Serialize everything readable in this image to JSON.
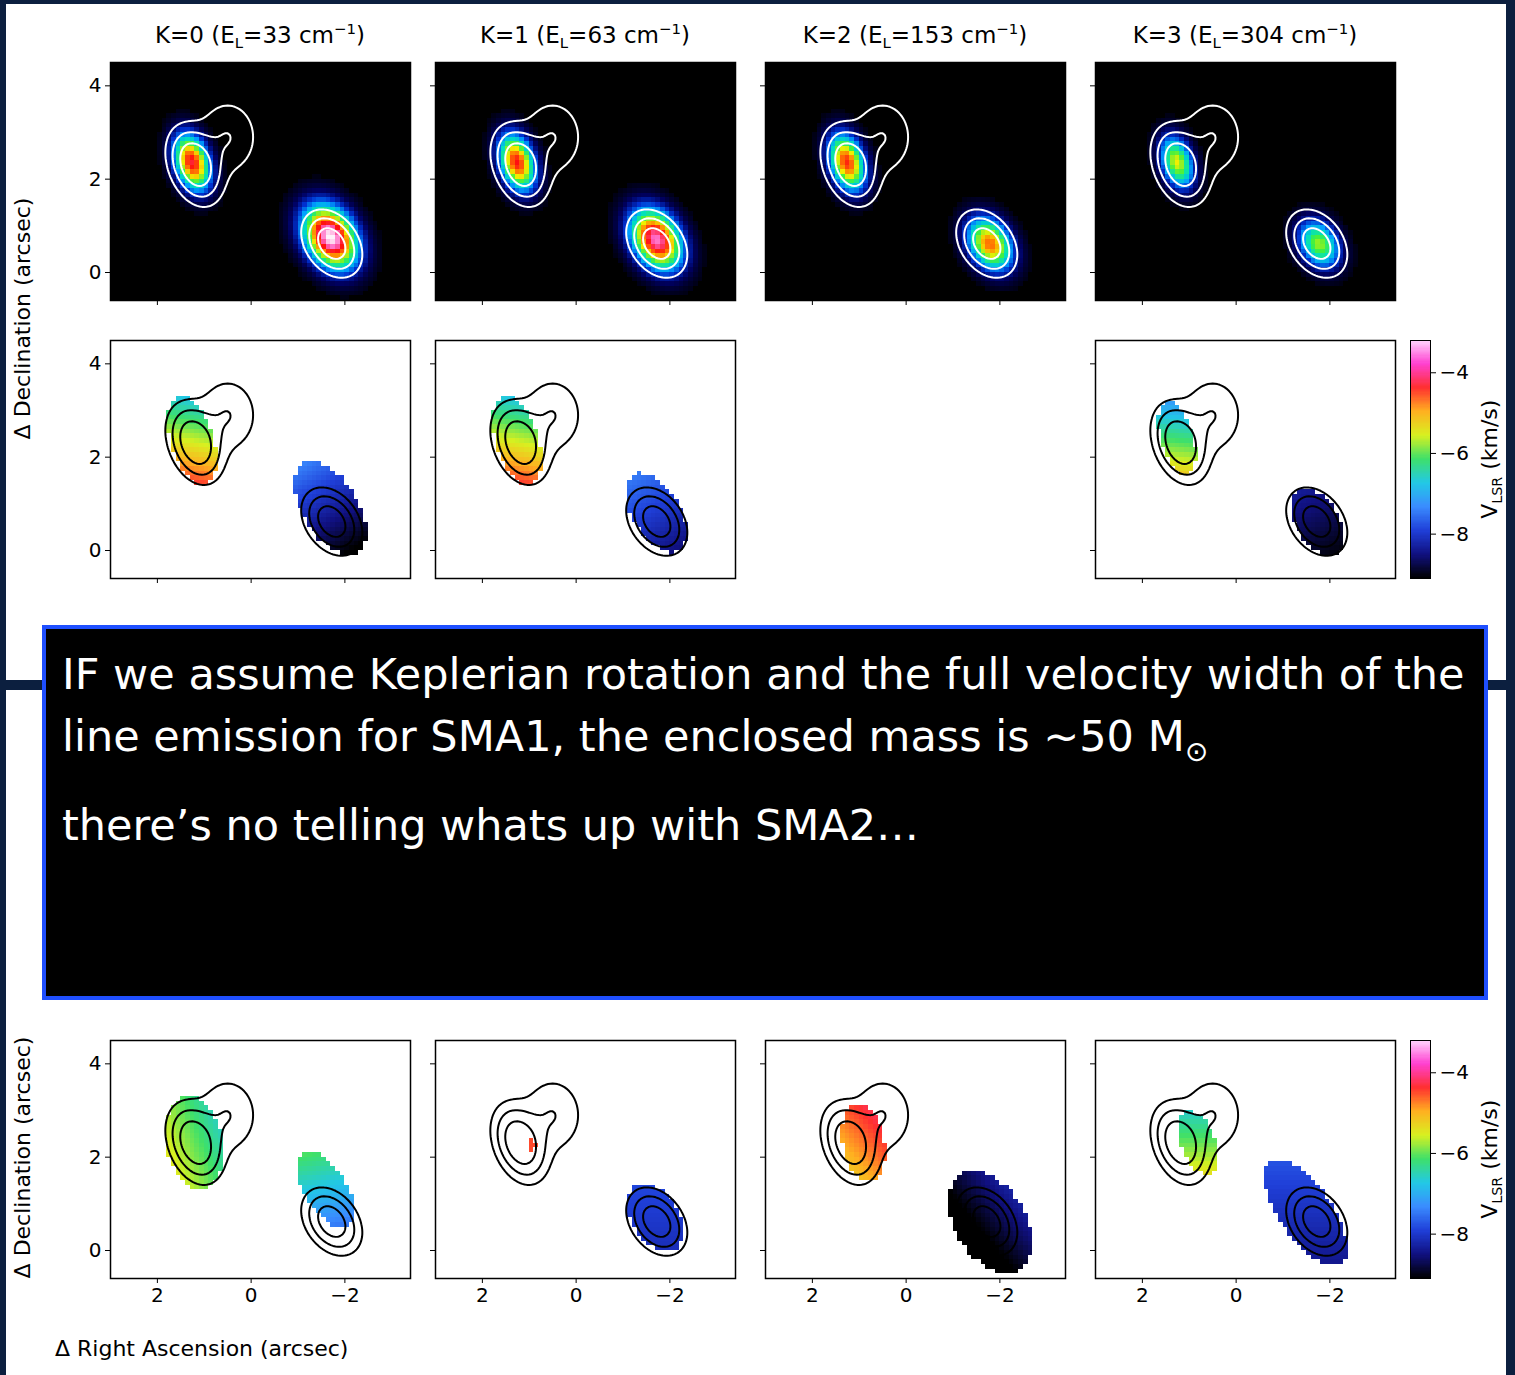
{
  "chart_data": {
    "type": "heatmap",
    "xlabel": "Δ Right Ascension (arcsec)",
    "ylabel": "Δ Declination (arcsec)",
    "xlim": [
      3,
      -3.4
    ],
    "ylim": [
      -0.6,
      4.5
    ],
    "xticks": [
      2,
      0,
      -2
    ],
    "yticks": [
      0,
      2,
      4
    ],
    "panel_titles": [
      {
        "text": "K=0 (E",
        "sub": "L",
        "mid": "=33 cm",
        "sup": "−1",
        "end": ")"
      },
      {
        "text": "K=1 (E",
        "sub": "L",
        "mid": "=63 cm",
        "sup": "−1",
        "end": ")"
      },
      {
        "text": "K=2 (E",
        "sub": "L",
        "mid": "=153 cm",
        "sup": "−1",
        "end": ")"
      },
      {
        "text": "K=3 (E",
        "sub": "L",
        "mid": "=304 cm",
        "sup": "−1",
        "end": ")"
      }
    ],
    "continuum_contours": {
      "levels": [
        0.12,
        0.3,
        0.6
      ],
      "components": [
        {
          "x": 1.2,
          "y": 2.3,
          "sigma_major": 0.45,
          "sigma_minor": 0.28,
          "pa": 20,
          "amplitude": 1.0
        },
        {
          "x": 0.5,
          "y": 2.9,
          "sigma_major": 0.5,
          "sigma_minor": 0.4,
          "pa": 0,
          "amplitude": 0.3
        },
        {
          "x": -1.72,
          "y": 0.62,
          "sigma_major": 0.4,
          "sigma_minor": 0.28,
          "pa": 35,
          "amplitude": 0.9
        }
      ]
    },
    "intensity_range": [
      0,
      1
    ],
    "intensity_panels": [
      {
        "blobs": [
          {
            "x": 1.25,
            "y": 2.35,
            "sigma_major": 0.43,
            "sigma_minor": 0.25,
            "pa": 17,
            "peak": 0.82
          },
          {
            "x": -1.7,
            "y": 0.75,
            "sigma_major": 0.5,
            "sigma_minor": 0.36,
            "pa": 31,
            "peak": 1.0
          }
        ]
      },
      {
        "blobs": [
          {
            "x": 1.25,
            "y": 2.35,
            "sigma_major": 0.43,
            "sigma_minor": 0.25,
            "pa": 17,
            "peak": 0.8
          },
          {
            "x": -1.72,
            "y": 0.7,
            "sigma_major": 0.48,
            "sigma_minor": 0.34,
            "pa": 31,
            "peak": 0.92
          }
        ]
      },
      {
        "blobs": [
          {
            "x": 1.25,
            "y": 2.35,
            "sigma_major": 0.43,
            "sigma_minor": 0.25,
            "pa": 17,
            "peak": 0.78
          },
          {
            "x": -1.8,
            "y": 0.6,
            "sigma_major": 0.42,
            "sigma_minor": 0.3,
            "pa": 31,
            "peak": 0.72
          }
        ]
      },
      {
        "blobs": [
          {
            "x": 1.25,
            "y": 2.35,
            "sigma_major": 0.4,
            "sigma_minor": 0.23,
            "pa": 17,
            "peak": 0.6
          },
          {
            "x": -1.78,
            "y": 0.6,
            "sigma_major": 0.38,
            "sigma_minor": 0.28,
            "pa": 31,
            "peak": 0.55
          }
        ]
      }
    ],
    "velocity_rows": [
      [
        {
          "regions": [
            {
              "x": 1.25,
              "y": 2.35,
              "semi_major": 1.0,
              "semi_minor": 0.45,
              "pa": 17,
              "v0": -5.6,
              "dv_dx": 0.3,
              "dv_dy": -1.3
            },
            {
              "x": -1.7,
              "y": 0.9,
              "semi_major": 1.1,
              "semi_minor": 0.6,
              "pa": 31,
              "v0": -8.3,
              "dv_dx": 0.4,
              "dv_dy": 0.7
            }
          ]
        },
        {
          "regions": [
            {
              "x": 1.25,
              "y": 2.35,
              "semi_major": 1.0,
              "semi_minor": 0.45,
              "pa": 17,
              "v0": -5.6,
              "dv_dx": 0.3,
              "dv_dy": -1.3
            },
            {
              "x": -1.72,
              "y": 0.8,
              "semi_major": 0.95,
              "semi_minor": 0.5,
              "pa": 31,
              "v0": -8.0,
              "dv_dx": 0.3,
              "dv_dy": 0.5
            }
          ]
        },
        null,
        {
          "regions": [
            {
              "x": 1.25,
              "y": 2.4,
              "semi_major": 0.8,
              "semi_minor": 0.35,
              "pa": 17,
              "v0": -6.2,
              "dv_dx": 0.2,
              "dv_dy": -1.3
            },
            {
              "x": -1.75,
              "y": 0.6,
              "semi_major": 0.8,
              "semi_minor": 0.45,
              "pa": 31,
              "v0": -8.7,
              "dv_dx": 0.2,
              "dv_dy": 0.4
            }
          ]
        }
      ],
      [
        {
          "regions": [
            {
              "x": 1.2,
              "y": 2.3,
              "semi_major": 1.0,
              "semi_minor": 0.6,
              "pa": 10,
              "v0": -6.0,
              "dv_dx": 0.8,
              "dv_dy": -0.3
            },
            {
              "x": -1.6,
              "y": 1.3,
              "semi_major": 0.9,
              "semi_minor": 0.45,
              "pa": 31,
              "v0": -6.8,
              "dv_dx": 0.2,
              "dv_dy": 0.8
            }
          ]
        },
        {
          "regions": [
            {
              "x": 0.95,
              "y": 2.25,
              "semi_major": 0.12,
              "semi_minor": 0.1,
              "pa": 0,
              "v0": -4.5,
              "dv_dx": 0,
              "dv_dy": 0
            },
            {
              "x": -1.7,
              "y": 0.7,
              "semi_major": 0.8,
              "semi_minor": 0.5,
              "pa": 31,
              "v0": -8.0,
              "dv_dx": 0,
              "dv_dy": 0.2
            }
          ]
        },
        {
          "regions": [
            {
              "x": 0.9,
              "y": 2.3,
              "semi_major": 0.85,
              "semi_minor": 0.45,
              "pa": 10,
              "v0": -4.7,
              "dv_dx": -0.6,
              "dv_dy": 0.5
            },
            {
              "x": -1.8,
              "y": 0.6,
              "semi_major": 1.2,
              "semi_minor": 0.75,
              "pa": 31,
              "v0": -8.9,
              "dv_dx": -0.6,
              "dv_dy": 0.5
            }
          ]
        },
        {
          "regions": [
            {
              "x": 0.8,
              "y": 2.3,
              "semi_major": 0.7,
              "semi_minor": 0.35,
              "pa": 20,
              "v0": -6.0,
              "dv_dx": 0,
              "dv_dy": -0.9
            },
            {
              "x": -1.5,
              "y": 0.8,
              "semi_major": 1.35,
              "semi_minor": 0.55,
              "pa": 35,
              "v0": -8.1,
              "dv_dx": 0,
              "dv_dy": 0.3
            }
          ]
        }
      ]
    ],
    "colorbar": {
      "range": [
        -9.1,
        -3.2
      ],
      "ticks": [
        -4,
        -6,
        -8
      ],
      "label": {
        "text": "V",
        "sub": "LSR",
        "end": " (km/s)"
      }
    }
  },
  "text_box": [
    {
      "text": "IF we assume Keplerian rotation and the full velocity width of the line emission for SMA1, the enclosed mass is ~50 M",
      "sub": "⊙"
    },
    {
      "text": "there’s no telling whats up with SMA2…"
    }
  ]
}
